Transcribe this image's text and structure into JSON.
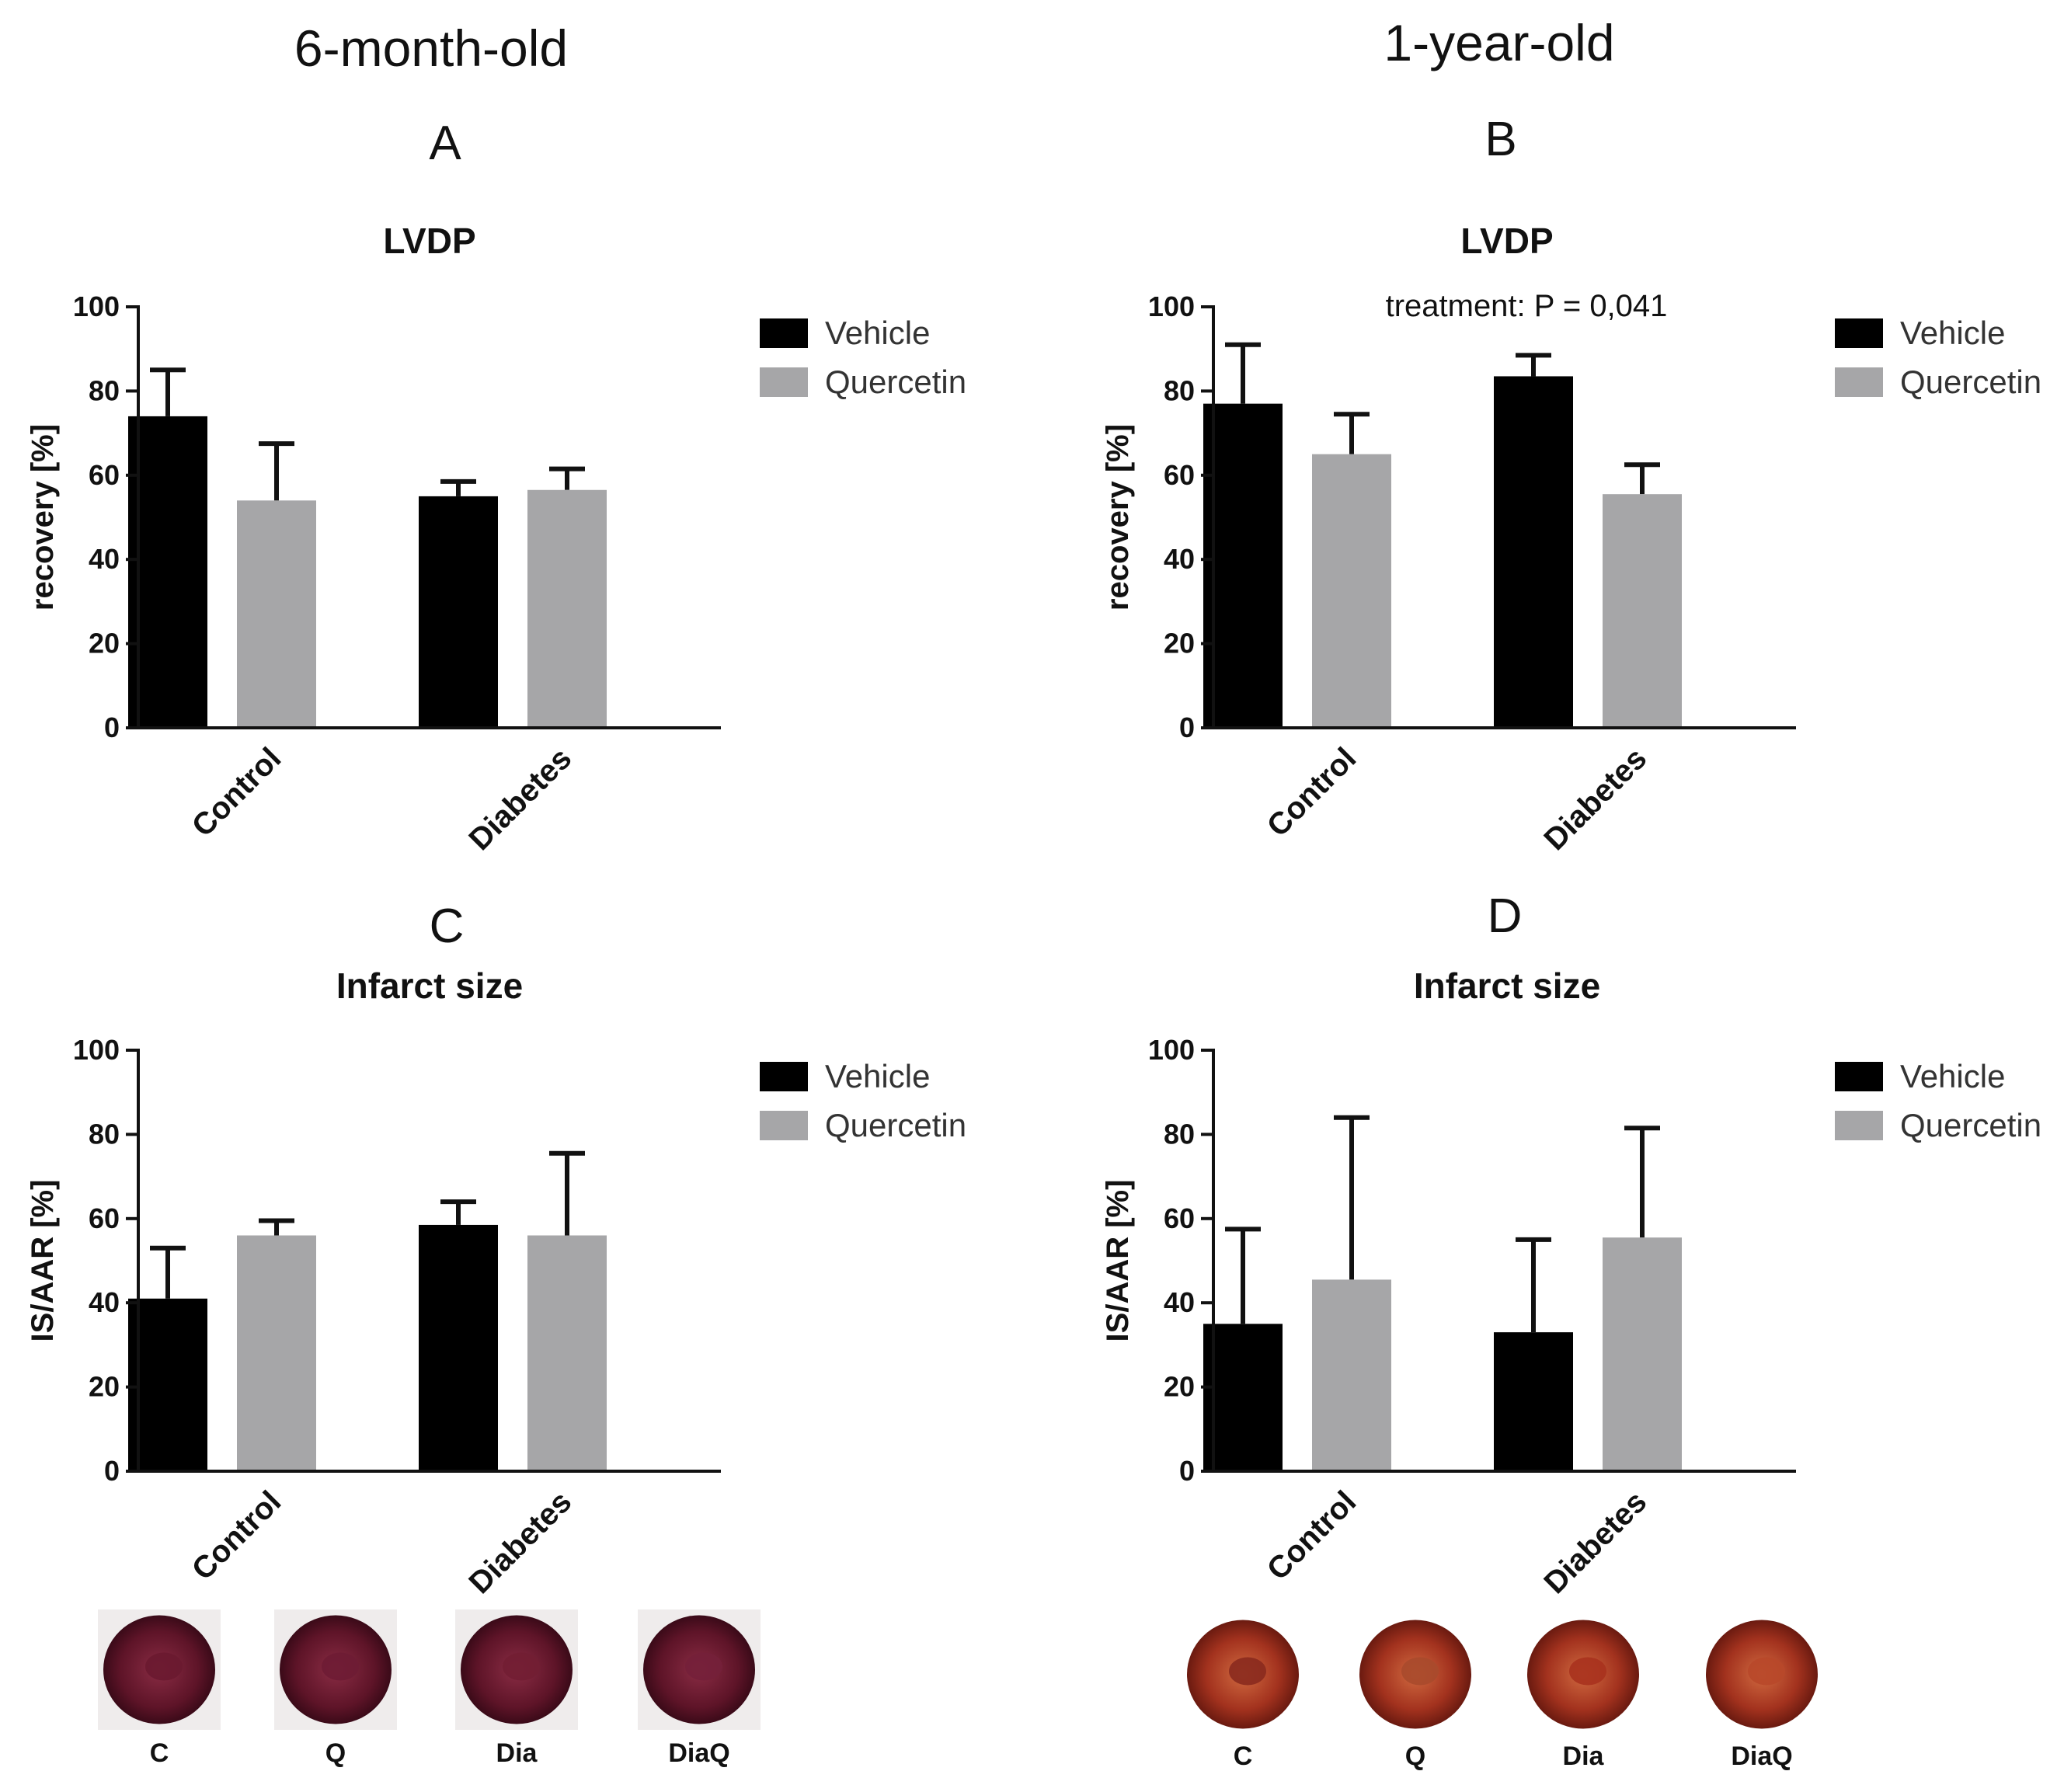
{
  "headings": {
    "left": "6-month-old",
    "right": "1-year-old"
  },
  "colors": {
    "vehicle": "#000000",
    "quercetin": "#a6a6a8",
    "axis": "#111111"
  },
  "chart_data": [
    {
      "panel": "A",
      "type": "bar",
      "title": "LVDP",
      "annotation": "",
      "ylabel": "recovery [%]",
      "ylim": [
        0,
        100
      ],
      "yticks": [
        0,
        20,
        40,
        60,
        80,
        100
      ],
      "categories": [
        "Control",
        "Diabetes"
      ],
      "series": [
        {
          "name": "Vehicle",
          "values": [
            74,
            55
          ],
          "errors": [
            11,
            3.5
          ]
        },
        {
          "name": "Quercetin",
          "values": [
            54,
            56.5
          ],
          "errors": [
            13.5,
            5
          ]
        }
      ],
      "legend": "top-right"
    },
    {
      "panel": "B",
      "type": "bar",
      "title": "LVDP",
      "annotation": "treatment: P = 0,041",
      "ylabel": "recovery [%]",
      "ylim": [
        0,
        100
      ],
      "yticks": [
        0,
        20,
        40,
        60,
        80,
        100
      ],
      "categories": [
        "Control",
        "Diabetes"
      ],
      "series": [
        {
          "name": "Vehicle",
          "values": [
            77,
            83.5
          ],
          "errors": [
            14,
            5
          ]
        },
        {
          "name": "Quercetin",
          "values": [
            65,
            55.5
          ],
          "errors": [
            9.5,
            7
          ]
        }
      ],
      "legend": "top-right"
    },
    {
      "panel": "C",
      "type": "bar",
      "title": "Infarct size",
      "annotation": "",
      "ylabel": "IS/AAR [%]",
      "ylim": [
        0,
        100
      ],
      "yticks": [
        0,
        20,
        40,
        60,
        80,
        100
      ],
      "categories": [
        "Control",
        "Diabetes"
      ],
      "series": [
        {
          "name": "Vehicle",
          "values": [
            41,
            58.5
          ],
          "errors": [
            12,
            5.5
          ]
        },
        {
          "name": "Quercetin",
          "values": [
            56,
            56
          ],
          "errors": [
            3.5,
            19.5
          ]
        }
      ],
      "legend": "top-right"
    },
    {
      "panel": "D",
      "type": "bar",
      "title": "Infarct size",
      "annotation": "",
      "ylabel": "IS/AAR [%]",
      "ylim": [
        0,
        100
      ],
      "yticks": [
        0,
        20,
        40,
        60,
        80,
        100
      ],
      "categories": [
        "Control",
        "Diabetes"
      ],
      "series": [
        {
          "name": "Vehicle",
          "values": [
            35,
            33
          ],
          "errors": [
            22.5,
            22
          ]
        },
        {
          "name": "Quercetin",
          "values": [
            45.5,
            55.5
          ],
          "errors": [
            38.5,
            26
          ]
        }
      ],
      "legend": "top-right"
    }
  ],
  "heart_images": {
    "left": [
      {
        "label": "C",
        "tone": "#6a1a30"
      },
      {
        "label": "Q",
        "tone": "#6e1c34"
      },
      {
        "label": "Dia",
        "tone": "#721e33"
      },
      {
        "label": "DiaQ",
        "tone": "#74203a"
      }
    ],
    "right": [
      {
        "label": "C",
        "tone": "#8a2a1e"
      },
      {
        "label": "Q",
        "tone": "#a84a2c"
      },
      {
        "label": "Dia",
        "tone": "#a8321e"
      },
      {
        "label": "DiaQ",
        "tone": "#b8482a"
      }
    ]
  }
}
